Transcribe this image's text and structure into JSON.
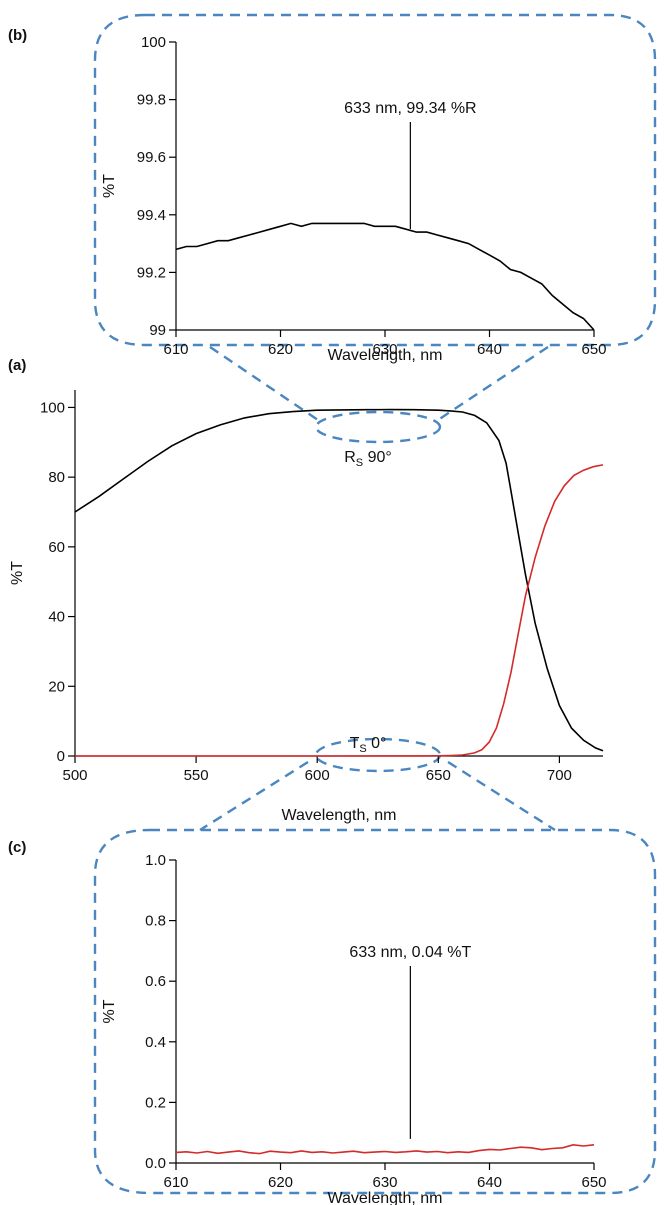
{
  "chart_data": [
    {
      "panel": "(a)",
      "type": "line",
      "xlabel": "Wavelength, nm",
      "ylabel": "%T",
      "xlim": [
        500,
        718
      ],
      "ylim": [
        0,
        105
      ],
      "xticks": [
        "500",
        "550",
        "600",
        "650",
        "700"
      ],
      "yticks": [
        "0",
        "20",
        "40",
        "60",
        "80",
        "100"
      ],
      "grid": false,
      "series": [
        {
          "name": "R",
          "subscript": "S",
          "suffix": " 90°",
          "color": "#000000",
          "x": [
            500,
            510,
            520,
            530,
            540,
            550,
            560,
            570,
            580,
            590,
            600,
            610,
            620,
            630,
            640,
            650,
            655,
            660,
            665,
            670,
            675,
            678,
            680,
            683,
            686,
            690,
            695,
            700,
            705,
            710,
            715,
            718
          ],
          "y": [
            70,
            74.5,
            79.5,
            84.5,
            89,
            92.5,
            95,
            97,
            98.2,
            98.8,
            99.2,
            99.3,
            99.35,
            99.37,
            99.35,
            99.2,
            99,
            98.7,
            97.7,
            95.6,
            90.5,
            84,
            76,
            64,
            52,
            38,
            25,
            14.5,
            8,
            4.5,
            2.3,
            1.5
          ]
        },
        {
          "name": "T",
          "subscript": "S",
          "suffix": " 0°",
          "color": "#d42a2a",
          "x": [
            500,
            550,
            600,
            640,
            650,
            655,
            660,
            665,
            668,
            671,
            674,
            677,
            680,
            683,
            686,
            690,
            694,
            698,
            702,
            706,
            710,
            714,
            718
          ],
          "y": [
            0,
            0,
            0,
            0.04,
            0.06,
            0.15,
            0.3,
            0.9,
            1.8,
            4,
            8,
            15,
            24,
            35,
            46,
            57,
            66,
            73,
            77.5,
            80.5,
            82,
            83,
            83.5
          ]
        }
      ]
    },
    {
      "panel": "(b)",
      "type": "line",
      "xlabel": "Wavelength, nm",
      "ylabel": "%T",
      "xlim": [
        610,
        650
      ],
      "ylim": [
        99,
        100
      ],
      "xticks": [
        "610",
        "620",
        "630",
        "640",
        "650"
      ],
      "yticks": [
        "99",
        "99.2",
        "99.4",
        "99.6",
        "99.8",
        "100"
      ],
      "grid": false,
      "annotation": {
        "text": "633 nm, 99.34 %R",
        "x": 633,
        "y": 99.34
      },
      "series": [
        {
          "name": "",
          "color": "#000000",
          "x": [
            610,
            611,
            612,
            613,
            614,
            615,
            616,
            617,
            618,
            619,
            620,
            621,
            622,
            623,
            624,
            625,
            626,
            627,
            628,
            629,
            630,
            631,
            632,
            633,
            634,
            635,
            636,
            637,
            638,
            639,
            640,
            641,
            642,
            643,
            644,
            645,
            646,
            647,
            648,
            649,
            650
          ],
          "y": [
            99.28,
            99.29,
            99.29,
            99.3,
            99.31,
            99.31,
            99.32,
            99.33,
            99.34,
            99.35,
            99.36,
            99.37,
            99.36,
            99.37,
            99.37,
            99.37,
            99.37,
            99.37,
            99.37,
            99.36,
            99.36,
            99.36,
            99.35,
            99.34,
            99.34,
            99.33,
            99.32,
            99.31,
            99.3,
            99.28,
            99.26,
            99.24,
            99.21,
            99.2,
            99.18,
            99.16,
            99.12,
            99.09,
            99.06,
            99.04,
            99.0
          ]
        }
      ]
    },
    {
      "panel": "(c)",
      "type": "line",
      "xlabel": "Wavelength, nm",
      "ylabel": "%T",
      "xlim": [
        610,
        650
      ],
      "ylim": [
        0,
        1
      ],
      "xticks": [
        "610",
        "620",
        "630",
        "640",
        "650"
      ],
      "yticks": [
        "0.0",
        "0.2",
        "0.4",
        "0.6",
        "0.8",
        "1.0"
      ],
      "grid": false,
      "annotation": {
        "text": "633 nm, 0.04 %T",
        "x": 633,
        "y": 0.04
      },
      "series": [
        {
          "name": "",
          "color": "#d42a2a",
          "x": [
            610,
            611,
            612,
            613,
            614,
            615,
            616,
            617,
            618,
            619,
            620,
            621,
            622,
            623,
            624,
            625,
            626,
            627,
            628,
            629,
            630,
            631,
            632,
            633,
            634,
            635,
            636,
            637,
            638,
            639,
            640,
            641,
            642,
            643,
            644,
            645,
            646,
            647,
            648,
            649,
            650
          ],
          "y": [
            0.035,
            0.037,
            0.033,
            0.038,
            0.032,
            0.036,
            0.04,
            0.034,
            0.031,
            0.039,
            0.036,
            0.034,
            0.04,
            0.035,
            0.037,
            0.033,
            0.036,
            0.039,
            0.034,
            0.036,
            0.038,
            0.035,
            0.037,
            0.04,
            0.036,
            0.038,
            0.034,
            0.037,
            0.035,
            0.041,
            0.045,
            0.043,
            0.048,
            0.052,
            0.05,
            0.044,
            0.048,
            0.05,
            0.06,
            0.056,
            0.06
          ]
        }
      ]
    }
  ],
  "colors": {
    "zoom_outline": "#4a86c0",
    "reflect": "#000000",
    "transmit": "#d42a2a"
  }
}
